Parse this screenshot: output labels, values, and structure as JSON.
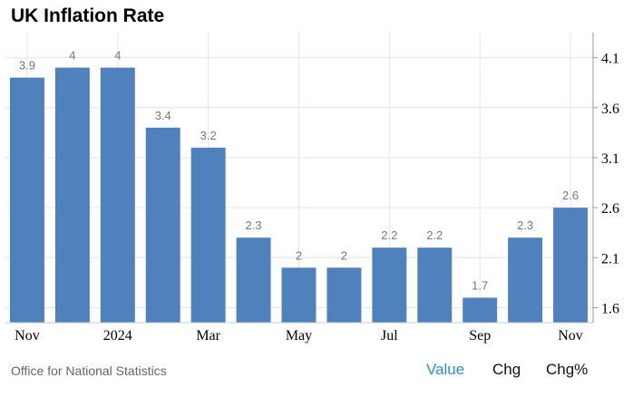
{
  "title": "UK Inflation Rate",
  "source": "Office for National Statistics",
  "tabs": {
    "value": "Value",
    "chg": "Chg",
    "chgpct": "Chg%"
  },
  "colors": {
    "bar": "#4f81bd",
    "active_tab": "#2a8fd6",
    "label": "#777777",
    "grid": "#e6e6e6"
  },
  "chart_data": {
    "type": "bar",
    "categories": [
      "Nov 2023",
      "Dec 2023",
      "Jan 2024",
      "Feb 2024",
      "Mar 2024",
      "Apr 2024",
      "May 2024",
      "Jun 2024",
      "Jul 2024",
      "Aug 2024",
      "Sep 2024",
      "Oct 2024",
      "Nov 2024"
    ],
    "values": [
      3.9,
      4,
      4,
      3.4,
      3.2,
      2.3,
      2,
      2,
      2.2,
      2.2,
      1.7,
      2.3,
      2.6
    ],
    "data_labels": [
      "3.9",
      "4",
      "4",
      "3.4",
      "3.2",
      "2.3",
      "2",
      "2",
      "2.2",
      "2.2",
      "1.7",
      "2.3",
      "2.6"
    ],
    "x_tick_labels": [
      "Nov",
      "",
      "2024",
      "",
      "Mar",
      "",
      "May",
      "",
      "Jul",
      "",
      "Sep",
      "",
      "Nov"
    ],
    "y_ticks": [
      1.6,
      2.1,
      2.6,
      3.1,
      3.6,
      4.1
    ],
    "y_tick_labels": [
      "1.6",
      "2.1",
      "2.6",
      "3.1",
      "3.6",
      "4.1"
    ],
    "ylim": [
      1.45,
      4.35
    ],
    "y_axis_side": "right",
    "grid": true
  }
}
